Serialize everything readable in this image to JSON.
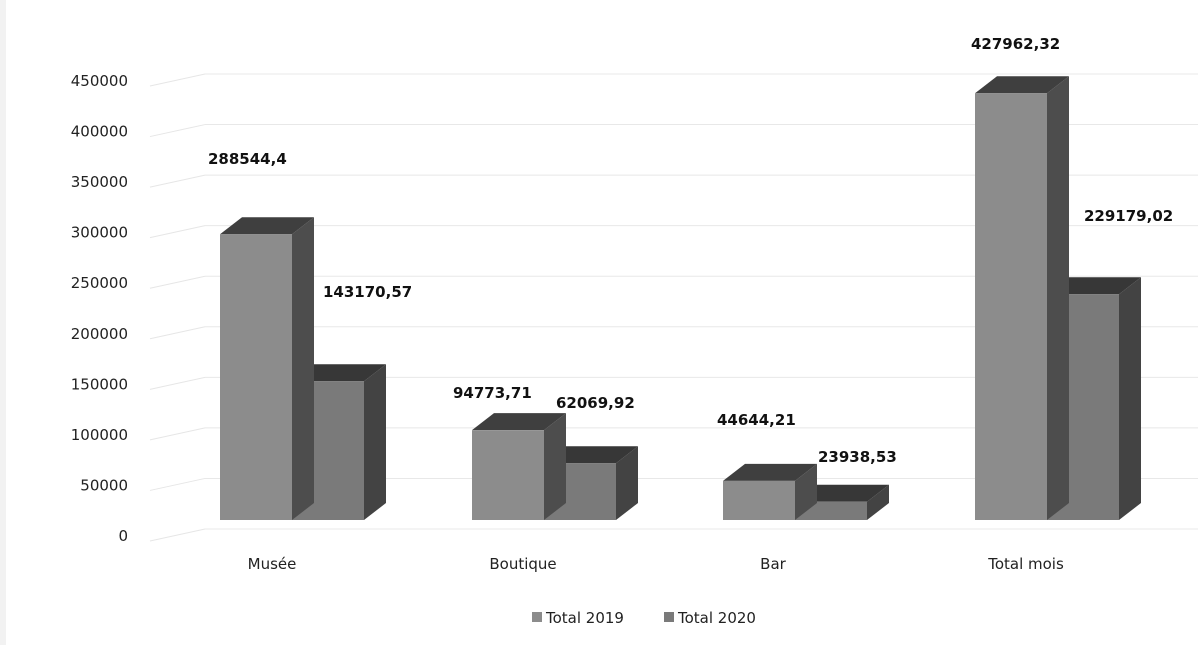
{
  "chart_data": {
    "type": "bar",
    "categories": [
      "Musée",
      "Boutique",
      "Bar",
      "Total mois"
    ],
    "series": [
      {
        "name": "Total 2019",
        "values": [
          288544.4,
          94773.71,
          44644.21,
          427962.32
        ],
        "labels": [
          "288544,4",
          "94773,71",
          "44644,21",
          "427962,32"
        ],
        "color": "#8c8c8c"
      },
      {
        "name": "Total 2020",
        "values": [
          143170.57,
          62069.92,
          23938.53,
          229179.02
        ],
        "labels": [
          "143170,57",
          "62069,92",
          "23938,53",
          "229179,02"
        ],
        "color": "#7a7a7a"
      }
    ],
    "ylim": [
      0,
      450000
    ],
    "yticks": [
      "0",
      "50000",
      "100000",
      "150000",
      "200000",
      "250000",
      "300000",
      "350000",
      "400000",
      "450000"
    ],
    "grid": true,
    "legend_position": "bottom",
    "style": "3d-column"
  }
}
